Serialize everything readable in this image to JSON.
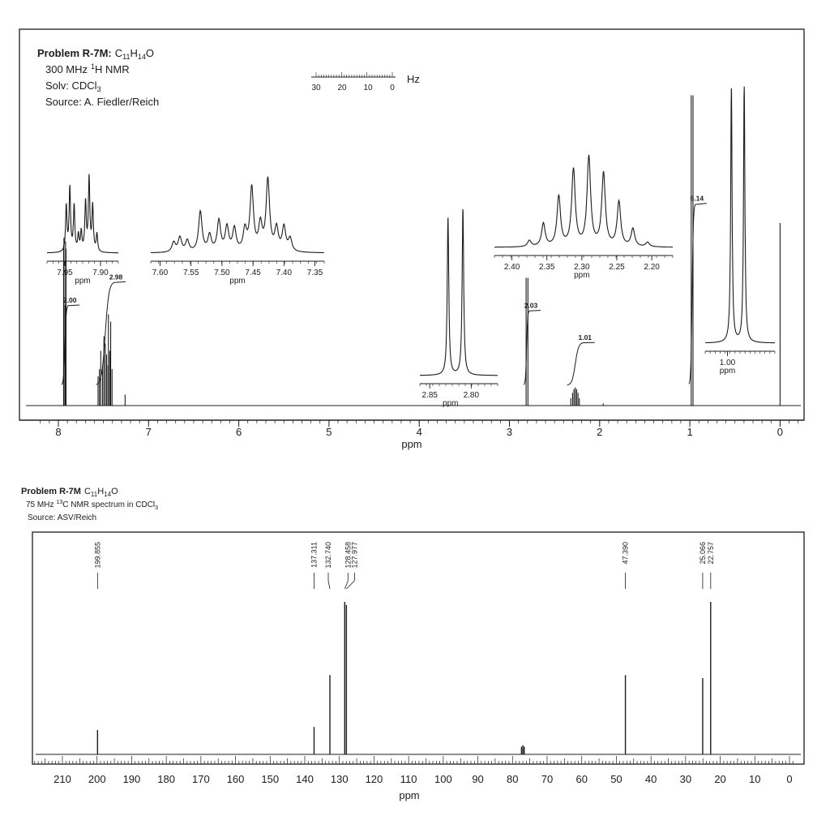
{
  "colors": {
    "ink": "#1c1c1c",
    "paper": "#ffffff"
  },
  "chart_data": [
    {
      "type": "line",
      "title": "Problem R-7M: C11H14O",
      "title_parts": {
        "prefix": "Problem R-7M:",
        "formula": [
          "C",
          "11",
          "H",
          "14",
          "O"
        ]
      },
      "info_lines": {
        "freq": "300 MHz",
        "nucleus_mass": "1",
        "nucleus": "H NMR",
        "solvent_label": "Solv: CDCl",
        "solvent_sub": "3",
        "source": "Source: A. Fiedler/Reich"
      },
      "hz_scale": {
        "ticks": [
          "30",
          "20",
          "10",
          "0"
        ],
        "unit": "Hz"
      },
      "xlabel": "ppm",
      "xlim": [
        8.3,
        -0.2
      ],
      "x_ticks": [
        8,
        7,
        6,
        5,
        4,
        3,
        2,
        1,
        0
      ],
      "x_tick_labels": [
        "8",
        "7",
        "6",
        "5",
        "4",
        "3",
        "2",
        "1",
        "0"
      ],
      "grid": false,
      "peaks": [
        {
          "ppm": 7.942,
          "height": 0.88
        },
        {
          "ppm": 7.938,
          "height": 0.92
        },
        {
          "ppm": 7.925,
          "height": 0.55
        },
        {
          "ppm": 7.92,
          "height": 0.9
        },
        {
          "ppm": 7.915,
          "height": 0.86
        },
        {
          "ppm": 7.56,
          "height": 0.16
        },
        {
          "ppm": 7.545,
          "height": 0.2
        },
        {
          "ppm": 7.53,
          "height": 0.3
        },
        {
          "ppm": 7.51,
          "height": 0.22
        },
        {
          "ppm": 7.495,
          "height": 0.38
        },
        {
          "ppm": 7.48,
          "height": 0.34
        },
        {
          "ppm": 7.465,
          "height": 0.28
        },
        {
          "ppm": 7.45,
          "height": 0.22
        },
        {
          "ppm": 7.445,
          "height": 0.5
        },
        {
          "ppm": 7.43,
          "height": 0.3
        },
        {
          "ppm": 7.42,
          "height": 0.46
        },
        {
          "ppm": 7.405,
          "height": 0.2
        },
        {
          "ppm": 7.26,
          "height": 0.06
        },
        {
          "ppm": 2.815,
          "height": 0.7
        },
        {
          "ppm": 2.795,
          "height": 0.7
        },
        {
          "ppm": 2.32,
          "height": 0.04
        },
        {
          "ppm": 2.3,
          "height": 0.07
        },
        {
          "ppm": 2.285,
          "height": 0.09
        },
        {
          "ppm": 2.27,
          "height": 0.1
        },
        {
          "ppm": 2.255,
          "height": 0.09
        },
        {
          "ppm": 2.24,
          "height": 0.07
        },
        {
          "ppm": 2.225,
          "height": 0.04
        },
        {
          "ppm": 1.96,
          "height": 0.012
        },
        {
          "ppm": 0.985,
          "height": 1.7
        },
        {
          "ppm": 0.965,
          "height": 1.7
        },
        {
          "ppm": 0.0,
          "height": 1.0
        }
      ],
      "integrals": [
        {
          "label": "2.00",
          "ppm_start": 7.965,
          "ppm_end": 7.89,
          "rise": 0.45
        },
        {
          "label": "2.98",
          "ppm_start": 7.58,
          "ppm_end": 7.38,
          "rise": 0.58
        },
        {
          "label": "2.03",
          "ppm_start": 2.84,
          "ppm_end": 2.78,
          "rise": 0.42
        },
        {
          "label": "1.01",
          "ppm_start": 2.36,
          "ppm_end": 2.18,
          "rise": 0.24
        },
        {
          "label": "6.14",
          "ppm_start": 1.01,
          "ppm_end": 0.94,
          "rise": 1.02
        }
      ],
      "insets": [
        {
          "name": "inset-7-9",
          "xlabel": "ppm",
          "xlim": [
            7.975,
            7.875
          ],
          "tick_labels": [
            "7.95",
            "7.90"
          ],
          "tick_values": [
            7.95,
            7.9
          ],
          "peaks": [
            {
              "ppm": 7.948,
              "height": 0.56
            },
            {
              "ppm": 7.943,
              "height": 0.78
            },
            {
              "ppm": 7.937,
              "height": 0.56
            },
            {
              "ppm": 7.931,
              "height": 0.2
            },
            {
              "ppm": 7.927,
              "height": 0.24
            },
            {
              "ppm": 7.921,
              "height": 0.6
            },
            {
              "ppm": 7.916,
              "height": 0.9
            },
            {
              "ppm": 7.911,
              "height": 0.56
            },
            {
              "ppm": 7.905,
              "height": 0.22
            }
          ]
        },
        {
          "name": "inset-7-5",
          "xlabel": "ppm",
          "xlim": [
            7.615,
            7.335
          ],
          "tick_labels": [
            "7.60",
            "7.55",
            "7.50",
            "7.45",
            "7.40",
            "7.35"
          ],
          "tick_values": [
            7.6,
            7.55,
            7.5,
            7.45,
            7.4,
            7.35
          ],
          "peaks": [
            {
              "ppm": 7.578,
              "height": 0.12
            },
            {
              "ppm": 7.568,
              "height": 0.18
            },
            {
              "ppm": 7.556,
              "height": 0.14
            },
            {
              "ppm": 7.535,
              "height": 0.5
            },
            {
              "ppm": 7.52,
              "height": 0.2
            },
            {
              "ppm": 7.505,
              "height": 0.38
            },
            {
              "ppm": 7.492,
              "height": 0.3
            },
            {
              "ppm": 7.48,
              "height": 0.28
            },
            {
              "ppm": 7.463,
              "height": 0.26
            },
            {
              "ppm": 7.452,
              "height": 0.78
            },
            {
              "ppm": 7.438,
              "height": 0.32
            },
            {
              "ppm": 7.426,
              "height": 0.88
            },
            {
              "ppm": 7.412,
              "height": 0.28
            },
            {
              "ppm": 7.4,
              "height": 0.3
            },
            {
              "ppm": 7.39,
              "height": 0.16
            }
          ]
        },
        {
          "name": "inset-2-8",
          "xlabel": "ppm",
          "xlim": [
            2.862,
            2.768
          ],
          "tick_labels": [
            "2.85",
            "2.80"
          ],
          "tick_values": [
            2.85,
            2.8
          ],
          "peaks": [
            {
              "ppm": 2.828,
              "height": 0.95
            },
            {
              "ppm": 2.81,
              "height": 1.0
            }
          ]
        },
        {
          "name": "inset-2-3",
          "xlabel": "ppm",
          "xlim": [
            2.425,
            2.17
          ],
          "tick_labels": [
            "2.40",
            "2.35",
            "2.30",
            "2.25",
            "2.20"
          ],
          "tick_values": [
            2.4,
            2.35,
            2.3,
            2.25,
            2.2
          ],
          "peaks": [
            {
              "ppm": 2.375,
              "height": 0.07
            },
            {
              "ppm": 2.355,
              "height": 0.26
            },
            {
              "ppm": 2.333,
              "height": 0.56
            },
            {
              "ppm": 2.312,
              "height": 0.86
            },
            {
              "ppm": 2.29,
              "height": 1.0
            },
            {
              "ppm": 2.269,
              "height": 0.82
            },
            {
              "ppm": 2.247,
              "height": 0.5
            },
            {
              "ppm": 2.227,
              "height": 0.2
            },
            {
              "ppm": 2.206,
              "height": 0.05
            }
          ]
        },
        {
          "name": "inset-1-0",
          "xlabel": "ppm",
          "xlim": [
            1.04,
            0.915
          ],
          "tick_labels": [
            "1.00"
          ],
          "tick_values": [
            1.0
          ],
          "peaks": [
            {
              "ppm": 0.993,
              "height": 1.0
            },
            {
              "ppm": 0.97,
              "height": 1.0
            }
          ]
        }
      ]
    },
    {
      "type": "bar",
      "title": "Problem R-7M C11H14O",
      "title_parts": {
        "prefix": "Problem R-7M",
        "formula": [
          "C",
          "11",
          "H",
          "14",
          "O"
        ]
      },
      "info_lines": {
        "freq": "75 MHz",
        "nucleus_mass": "13",
        "nucleus_text": "C NMR spectrum in CDCl",
        "solvent_sub": "3",
        "source": "Source: ASV/Reich"
      },
      "xlabel": "ppm",
      "xlim": [
        218,
        -1
      ],
      "x_ticks": [
        210,
        200,
        190,
        180,
        170,
        160,
        150,
        140,
        130,
        120,
        110,
        100,
        90,
        80,
        70,
        60,
        50,
        40,
        30,
        20,
        10,
        0
      ],
      "x_tick_labels": [
        "210",
        "200",
        "190",
        "180",
        "170",
        "160",
        "150",
        "140",
        "130",
        "120",
        "110",
        "100",
        "90",
        "80",
        "70",
        "60",
        "50",
        "40",
        "30",
        "20",
        "10",
        "0"
      ],
      "grid": false,
      "peak_labels": [
        "199.855",
        "137.311",
        "132.740",
        "128.458",
        "127.977",
        "47.390",
        "25.066",
        "22.757"
      ],
      "peaks": [
        {
          "ppm": 199.855,
          "height": 0.16
        },
        {
          "ppm": 137.311,
          "height": 0.18
        },
        {
          "ppm": 132.74,
          "height": 0.52
        },
        {
          "ppm": 128.458,
          "height": 1.0
        },
        {
          "ppm": 127.977,
          "height": 0.98
        },
        {
          "ppm": 77.4,
          "height": 0.05
        },
        {
          "ppm": 77.0,
          "height": 0.06
        },
        {
          "ppm": 76.6,
          "height": 0.05
        },
        {
          "ppm": 47.39,
          "height": 0.52
        },
        {
          "ppm": 25.066,
          "height": 0.5
        },
        {
          "ppm": 22.757,
          "height": 1.0
        }
      ]
    }
  ]
}
